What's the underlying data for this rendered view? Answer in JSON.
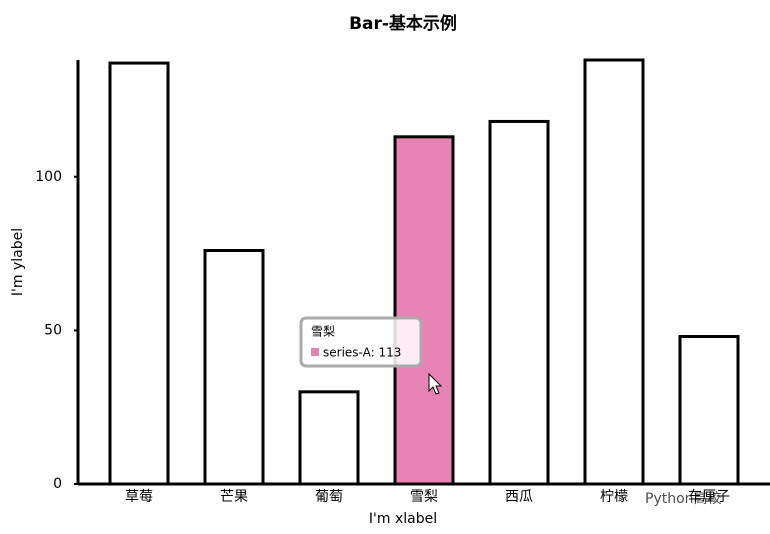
{
  "chart_data": {
    "type": "bar",
    "title": "Bar-基本示例",
    "xlabel": "I'm xlabel",
    "ylabel": "I'm ylabel",
    "categories": [
      "草莓",
      "芒果",
      "葡萄",
      "雪梨",
      "西瓜",
      "柠檬",
      "车厘子"
    ],
    "values": [
      137,
      76,
      30,
      113,
      118,
      138,
      48
    ],
    "colors": [
      "#ffffff",
      "#ffffff",
      "#ffffff",
      "#e884b4",
      "#ffffff",
      "#ffffff",
      "#ffffff"
    ],
    "stroke": "#000000",
    "ylim": [
      0,
      138
    ],
    "yticks": [
      0,
      50,
      100
    ],
    "grid": false,
    "tooltip": {
      "title": "雪梨",
      "label": "series-A: 113",
      "color": "#e884b4"
    },
    "watermark": "Python高校"
  }
}
